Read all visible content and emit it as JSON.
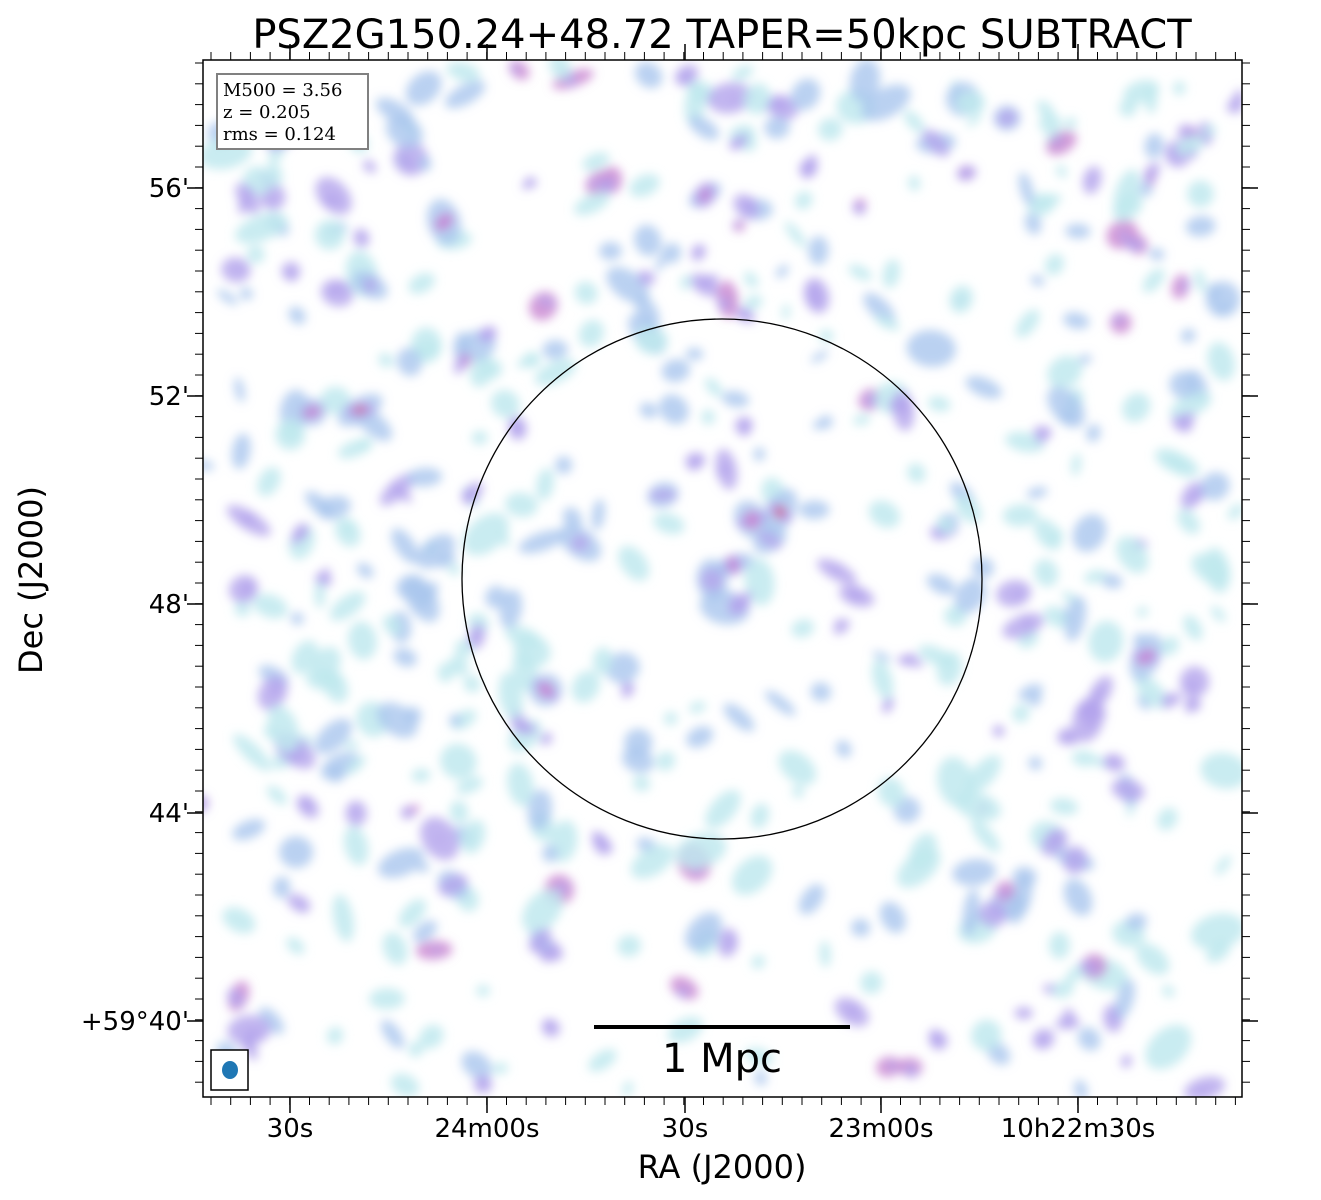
{
  "chart_data": {
    "type": "heatmap",
    "title": "PSZ2G150.24+48.72 TAPER=50kpc SUBTRACT",
    "xlabel": "RA (J2000)",
    "ylabel": "Dec (J2000)",
    "x_ticks": [
      "30s",
      "24m00s",
      "30s",
      "23m00s",
      "10h22m30s"
    ],
    "y_ticks": [
      "56'",
      "52'",
      "48'",
      "44'",
      "+59°40'"
    ],
    "info": {
      "m500": "M500 = 3.56",
      "z": "z = 0.205",
      "rms": "rms = 0.124"
    },
    "scale_bar_label": "1 Mpc",
    "grid": false,
    "circle_marker": true,
    "beam_marker_position": "bottom-left",
    "info_box_position": "top-left",
    "colormap": [
      "#bfe9ee",
      "#a9c6ee",
      "#b3a4ec",
      "#c882cf",
      "#cc6675"
    ]
  }
}
